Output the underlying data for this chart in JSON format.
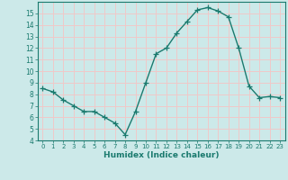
{
  "x": [
    0,
    1,
    2,
    3,
    4,
    5,
    6,
    7,
    8,
    9,
    10,
    11,
    12,
    13,
    14,
    15,
    16,
    17,
    18,
    19,
    20,
    21,
    22,
    23
  ],
  "y": [
    8.5,
    8.2,
    7.5,
    7.0,
    6.5,
    6.5,
    6.0,
    5.5,
    4.5,
    6.5,
    9.0,
    11.5,
    12.0,
    13.3,
    14.3,
    15.3,
    15.5,
    15.2,
    14.7,
    12.0,
    8.7,
    7.7,
    7.8,
    7.7
  ],
  "line_color": "#1a7a6e",
  "marker": "+",
  "marker_size": 4,
  "bg_color": "#cce9e9",
  "grid_color": "#f0c8c8",
  "xlabel": "Humidex (Indice chaleur)",
  "ylim": [
    4,
    16
  ],
  "xlim": [
    -0.5,
    23.5
  ],
  "yticks": [
    4,
    5,
    6,
    7,
    8,
    9,
    10,
    11,
    12,
    13,
    14,
    15
  ],
  "xticks": [
    0,
    1,
    2,
    3,
    4,
    5,
    6,
    7,
    8,
    9,
    10,
    11,
    12,
    13,
    14,
    15,
    16,
    17,
    18,
    19,
    20,
    21,
    22,
    23
  ],
  "line_width": 1.0
}
